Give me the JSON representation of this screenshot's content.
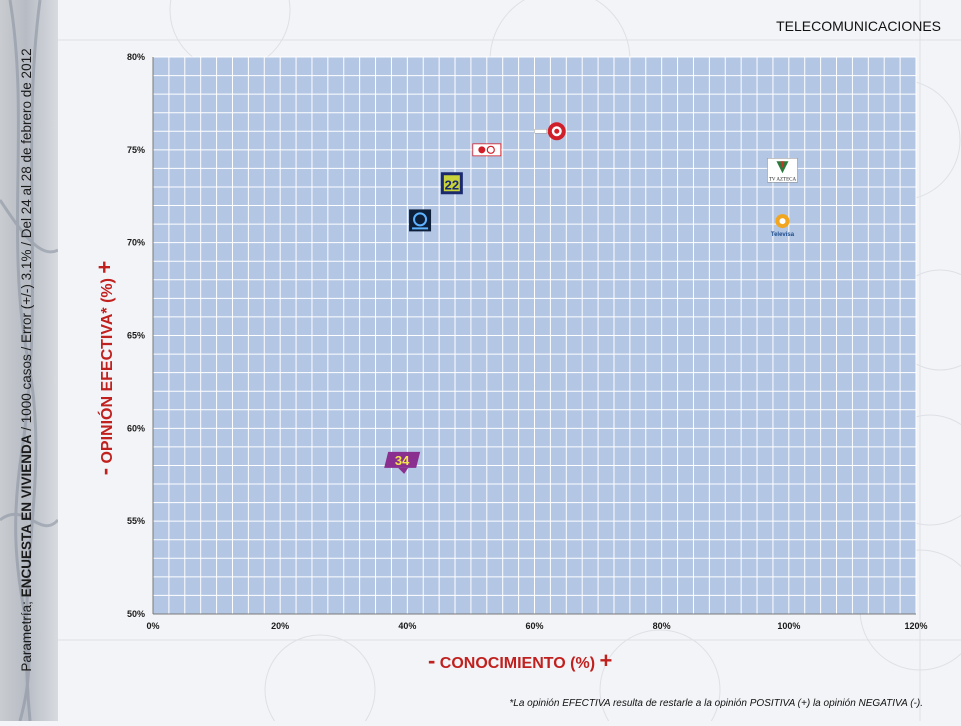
{
  "header": {
    "section_title": "TELECOMUNICACIONES",
    "side_brand": "Parametría;",
    "side_survey": "ENCUESTA EN VIVIENDA",
    "side_details": "/ 1000 casos / Error (+/-) 3.1% / Del 24 al 28 de febrero de 2012"
  },
  "axes": {
    "x_minus": "-",
    "x_title": "CONOCIMIENTO (%)",
    "x_plus": "+",
    "y_minus": "-",
    "y_title": "OPINIÓN EFECTIVA* (%)",
    "y_plus": "+"
  },
  "footnote": "*La opinión EFECTIVA resulta de restarle a la opinión POSITIVA (+) la opinión NEGATIVA (-).",
  "chart_data": {
    "type": "scatter",
    "xlim": [
      0,
      120
    ],
    "ylim": [
      50,
      80
    ],
    "x_ticks": [
      0,
      20,
      40,
      60,
      80,
      100,
      120
    ],
    "x_tick_labels": [
      "0%",
      "20%",
      "40%",
      "60%",
      "80%",
      "100%",
      "120%"
    ],
    "y_ticks": [
      50,
      55,
      60,
      65,
      70,
      75,
      80
    ],
    "y_tick_labels": [
      "50%",
      "55%",
      "60%",
      "65%",
      "70%",
      "75%",
      "80%"
    ],
    "grid": true,
    "plot_background": "#b3c6e4",
    "grid_color": "#ffffff",
    "points": [
      {
        "label": "Televisa",
        "x": 99,
        "y": 71.0,
        "logo": "televisa-logo"
      },
      {
        "label": "TV Azteca",
        "x": 99,
        "y": 73.9,
        "logo": "tv-azteca-logo"
      },
      {
        "label": "Once TV",
        "x": 63.5,
        "y": 76.0,
        "logo": "once-tv-logo"
      },
      {
        "label": "Cadena Tres",
        "x": 52.5,
        "y": 75.0,
        "logo": "cadena-tres-logo"
      },
      {
        "label": "Canal 22",
        "x": 47,
        "y": 73.2,
        "logo": "canal-22-logo"
      },
      {
        "label": "Proyecto 40",
        "x": 42,
        "y": 71.2,
        "logo": "proyecto-40-logo"
      },
      {
        "label": "Canal 34",
        "x": 39.5,
        "y": 58.3,
        "logo": "canal-34-logo"
      }
    ],
    "logo_texts": {
      "tv-azteca-logo": "TV AZTECA",
      "televisa-logo": "Televisa",
      "canal-34-logo": "34",
      "canal-22-logo": "22"
    }
  }
}
